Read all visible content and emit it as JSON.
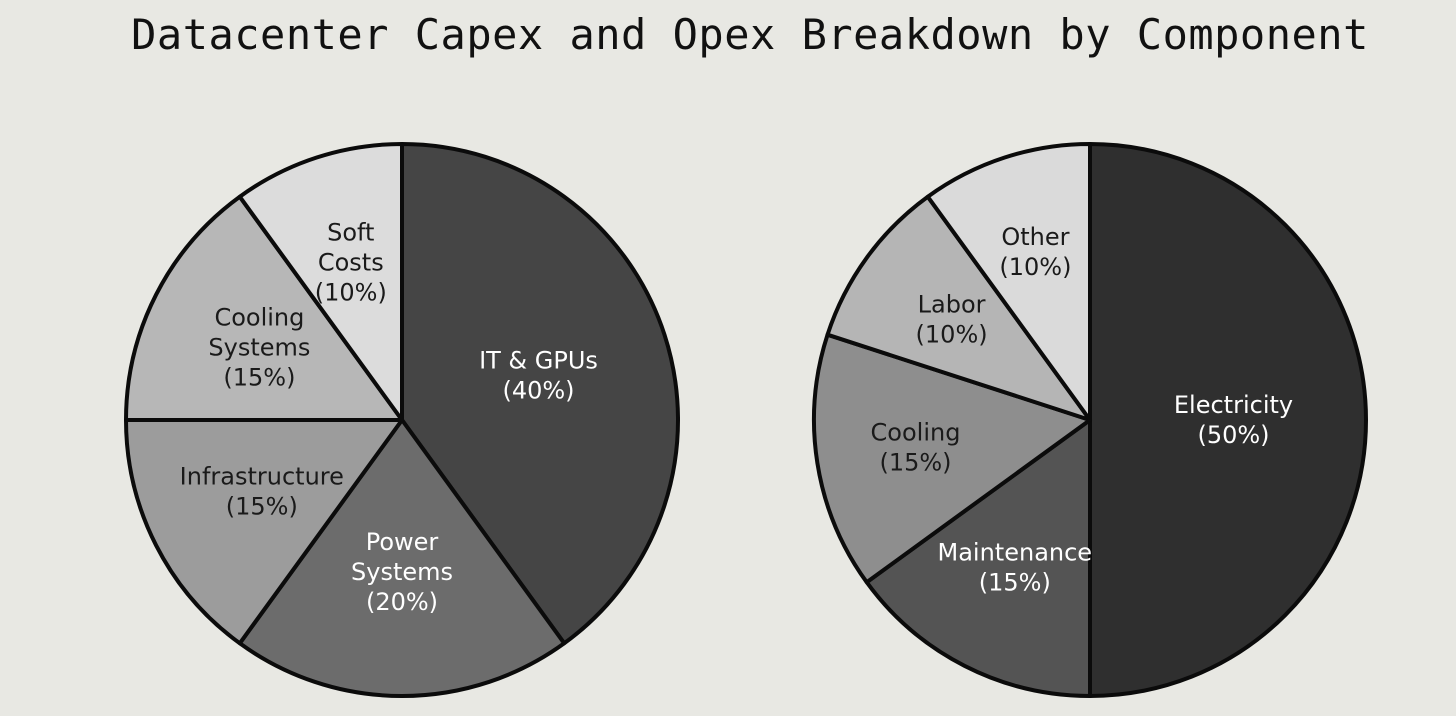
{
  "title": "Datacenter Capex and Opex Breakdown by Component",
  "chart_data": [
    {
      "type": "pie",
      "title": "",
      "start": "12 o'clock, clockwise",
      "slices": [
        {
          "label_lines": [
            "IT & GPUs"
          ],
          "value": 40,
          "value_text": "(40%)",
          "color": "#454545",
          "text_color": "#ffffff"
        },
        {
          "label_lines": [
            "Power",
            "Systems"
          ],
          "value": 20,
          "value_text": "(20%)",
          "color": "#6c6c6c",
          "text_color": "#ffffff"
        },
        {
          "label_lines": [
            "Infrastructure"
          ],
          "value": 15,
          "value_text": "(15%)",
          "color": "#9c9c9c",
          "text_color": "#1a1a1a"
        },
        {
          "label_lines": [
            "Cooling",
            "Systems"
          ],
          "value": 15,
          "value_text": "(15%)",
          "color": "#b7b7b7",
          "text_color": "#1a1a1a"
        },
        {
          "label_lines": [
            "Soft",
            "Costs"
          ],
          "value": 10,
          "value_text": "(10%)",
          "color": "#dcdcdc",
          "text_color": "#1a1a1a"
        }
      ]
    },
    {
      "type": "pie",
      "title": "",
      "start": "12 o'clock, clockwise",
      "slices": [
        {
          "label_lines": [
            "Electricity"
          ],
          "value": 50,
          "value_text": "(50%)",
          "color": "#2f2f2f",
          "text_color": "#ffffff"
        },
        {
          "label_lines": [
            "Maintenance"
          ],
          "value": 15,
          "value_text": "(15%)",
          "color": "#545454",
          "text_color": "#ffffff"
        },
        {
          "label_lines": [
            "Cooling"
          ],
          "value": 15,
          "value_text": "(15%)",
          "color": "#8e8e8e",
          "text_color": "#1a1a1a"
        },
        {
          "label_lines": [
            "Labor"
          ],
          "value": 10,
          "value_text": "(10%)",
          "color": "#b5b5b5",
          "text_color": "#1a1a1a"
        },
        {
          "label_lines": [
            "Other"
          ],
          "value": 10,
          "value_text": "(10%)",
          "color": "#dadada",
          "text_color": "#1a1a1a"
        }
      ]
    }
  ]
}
